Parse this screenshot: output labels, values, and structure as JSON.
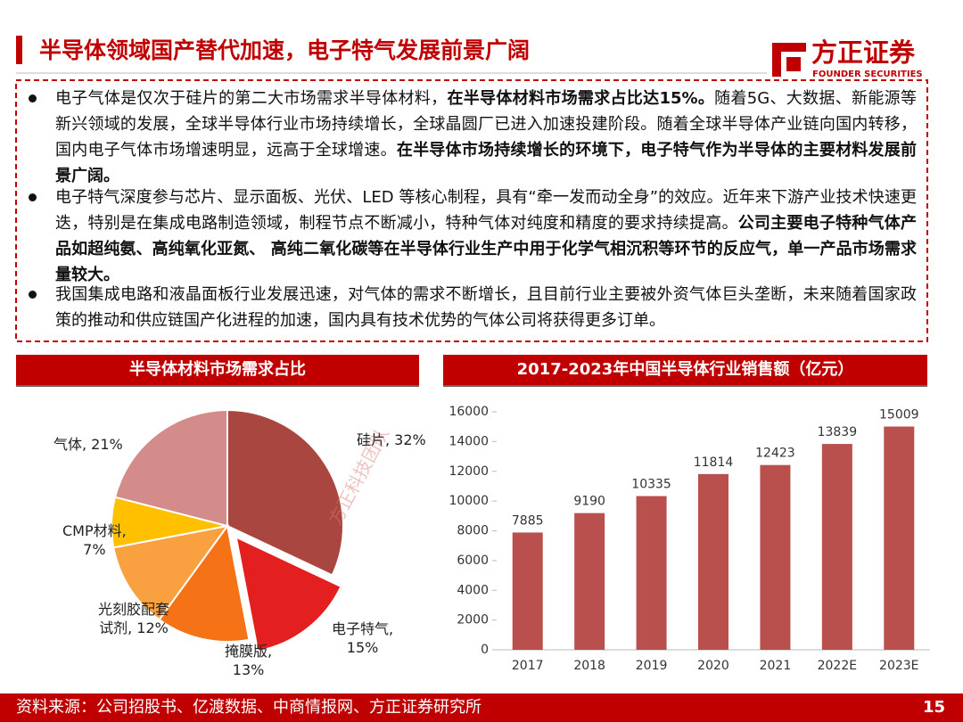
{
  "header": {
    "title": "半导体领域国产替代加速，电子特气发展前景广阔",
    "logo_cn": "方正证券",
    "logo_en": "FOUNDER SECURITIES"
  },
  "bullets": [
    [
      {
        "text": "电子气体是仅次于硅片的第二大市场需求半导体材料，",
        "bold": false
      },
      {
        "text": "在半导体材料市场需求占比达15%。",
        "bold": true
      },
      {
        "text": "随着5G、大数据、新能源等新兴领域的发展，全球半导体行业市场持续增长，全球晶圆厂已进入加速投建阶段。随着全球半导体产业链向国内转移，国内电子气体市场增速明显，远高于全球增速。",
        "bold": false
      },
      {
        "text": "在半导体市场持续增长的环境下，电子特气作为半导体的主要材料发展前景广阔。",
        "bold": true
      }
    ],
    [
      {
        "text": "电子特气深度参与芯片、显示面板、光伏、LED 等核心制程，具有“牵一发而动全身”的效应。近年来下游产业技术快速更迭，特别是在集成电路制造领域，制程节点不断减小，特种气体对纯度和精度的要求持续提高。",
        "bold": false
      },
      {
        "text": "公司主要电子特种气体产品如超纯氨、高纯氧化亚氮、 高纯二氧化碳等在半导体行业生产中用于化学气相沉积等环节的反应气，单一产品市场需求量较大。",
        "bold": true
      }
    ],
    [
      {
        "text": "我国集成电路和液晶面板行业发展迅速，对气体的需求不断增长，且目前行业主要被外资气体巨头垄断，未来随着国家政策的推动和供应链国产化进程的加速，国内具有技术优势的气体公司将获得更多订单。",
        "bold": false
      }
    ]
  ],
  "chart_data": [
    {
      "type": "pie",
      "title": "半导体材料市场需求占比",
      "values": [
        32,
        15,
        13,
        12,
        7,
        21
      ],
      "value_labels": [
        "硅片, 32%",
        "电子特气,\n15%",
        "掩膜版,\n13%",
        "光刻胶配套\n试剂, 12%",
        "CMP材料,\n7%",
        "气体, 21%"
      ],
      "colors": [
        "#a9463f",
        "#e3201f",
        "#f57316",
        "#f9a040",
        "#ffc000",
        "#d38c89"
      ],
      "exploded": [
        false,
        true,
        false,
        false,
        false,
        false
      ],
      "watermark": "方正科技团队"
    },
    {
      "type": "bar",
      "title": "2017-2023年中国半导体行业销售额（亿元）",
      "categories": [
        "2017",
        "2018",
        "2019",
        "2020",
        "2021",
        "2022E",
        "2023E"
      ],
      "values": [
        7885,
        9190,
        10335,
        11814,
        12423,
        13839,
        15009
      ],
      "color": "#b9504e",
      "ylim": [
        0,
        16000
      ],
      "yticks": [
        0,
        2000,
        4000,
        6000,
        8000,
        10000,
        12000,
        14000,
        16000
      ]
    }
  ],
  "footer": {
    "source": "资料来源：公司招股书、亿渡数据、中商情报网、方正证券研究所",
    "page": "15"
  }
}
